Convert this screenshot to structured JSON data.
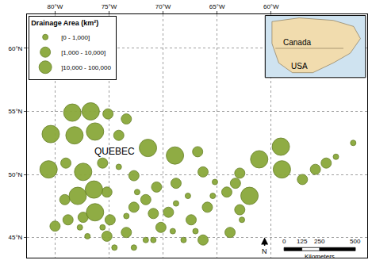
{
  "chart_data": {
    "type": "scatter",
    "legend_title": "Drainage Area (km²)",
    "legend": "top-left",
    "grid": true,
    "marker": "circle",
    "color": "#8aa83a",
    "xlim": [
      -82.6,
      -51.1
    ],
    "ylim": [
      43.4,
      62.7
    ],
    "xticks": [
      {
        "value": -80,
        "label": "80°W"
      },
      {
        "value": -75,
        "label": "75°W"
      },
      {
        "value": -70,
        "label": "70°W"
      },
      {
        "value": -65,
        "label": "65°W"
      },
      {
        "value": -60,
        "label": "60°W"
      }
    ],
    "yticks": [
      {
        "value": 45,
        "label": "45°N"
      },
      {
        "value": 50,
        "label": "50°N"
      },
      {
        "value": 55,
        "label": "55°N"
      },
      {
        "value": 60,
        "label": "60°N"
      }
    ],
    "series": [
      {
        "name": "[0 - 1,000]",
        "color": "#8aa83a",
        "x": [
          -74.1,
          -73.4,
          -68.8,
          -69.1,
          -68.1,
          -71.6,
          -77.0,
          -77.7,
          -74.5,
          -72.7,
          -65.4,
          -65.2,
          -62.7,
          -52.4,
          -54.0,
          -72.4,
          -67.7,
          -75.6,
          -70.9,
          -67.0
        ],
        "y": [
          50.6,
          46.7,
          47.7,
          45.5,
          44.8,
          44.8,
          45.1,
          45.8,
          44.2,
          44.2,
          48.3,
          49.4,
          46.4,
          52.5,
          51.4,
          48.6,
          48.3,
          45.8,
          44.8,
          45.5
        ]
      },
      {
        "name": "[1,000 - 10,000]",
        "color": "#8aa83a",
        "x": [
          -75.1,
          -73.4,
          -74.1,
          -66.8,
          -79.0,
          -75.6,
          -72.7,
          -79.1,
          -75.2,
          -71.6,
          -80.0,
          -78.8,
          -77.4,
          -74.9,
          -72.7,
          -70.9,
          -69.5,
          -70.2,
          -73.4,
          -75.2,
          -67.4,
          -65.9,
          -64.1,
          -63.3,
          -62.9,
          -62.9,
          -66.3,
          -57.1,
          -55.9,
          -54.9,
          -66.3,
          -63.8,
          -68.8,
          -70.6
        ],
        "y": [
          54.8,
          54.4,
          53.1,
          51.8,
          50.9,
          50.9,
          49.9,
          48.0,
          48.6,
          48.0,
          45.9,
          46.4,
          46.6,
          46.4,
          47.4,
          46.9,
          47.0,
          45.8,
          45.4,
          45.1,
          46.4,
          47.4,
          48.6,
          49.3,
          47.2,
          50.1,
          50.2,
          49.6,
          50.4,
          50.9,
          44.8,
          45.4,
          49.3,
          49.0
        ]
      },
      {
        "name": "]10,000 - 100,000",
        "color": "#8aa83a",
        "x": [
          -80.4,
          -78.4,
          -76.7,
          -78.2,
          -76.3,
          -71.4,
          -68.9,
          -80.6,
          -77.4,
          -77.9,
          -76.4,
          -61.1,
          -59.1,
          -59.0,
          -62.0,
          -76.3
        ],
        "y": [
          53.2,
          54.9,
          55.0,
          53.1,
          53.4,
          52.1,
          51.5,
          50.4,
          50.2,
          48.3,
          48.8,
          51.2,
          52.2,
          50.4,
          48.3,
          47.0
        ]
      }
    ],
    "annotations": [
      {
        "text": "QUEBEC",
        "x": -74.5,
        "y": 51.8
      }
    ],
    "inset": {
      "labels": [
        "Canada",
        "USA"
      ]
    },
    "scale_bar": {
      "ticks": [
        0,
        125,
        250,
        500
      ],
      "unit": "Kilometers"
    },
    "north_arrow": "N"
  }
}
